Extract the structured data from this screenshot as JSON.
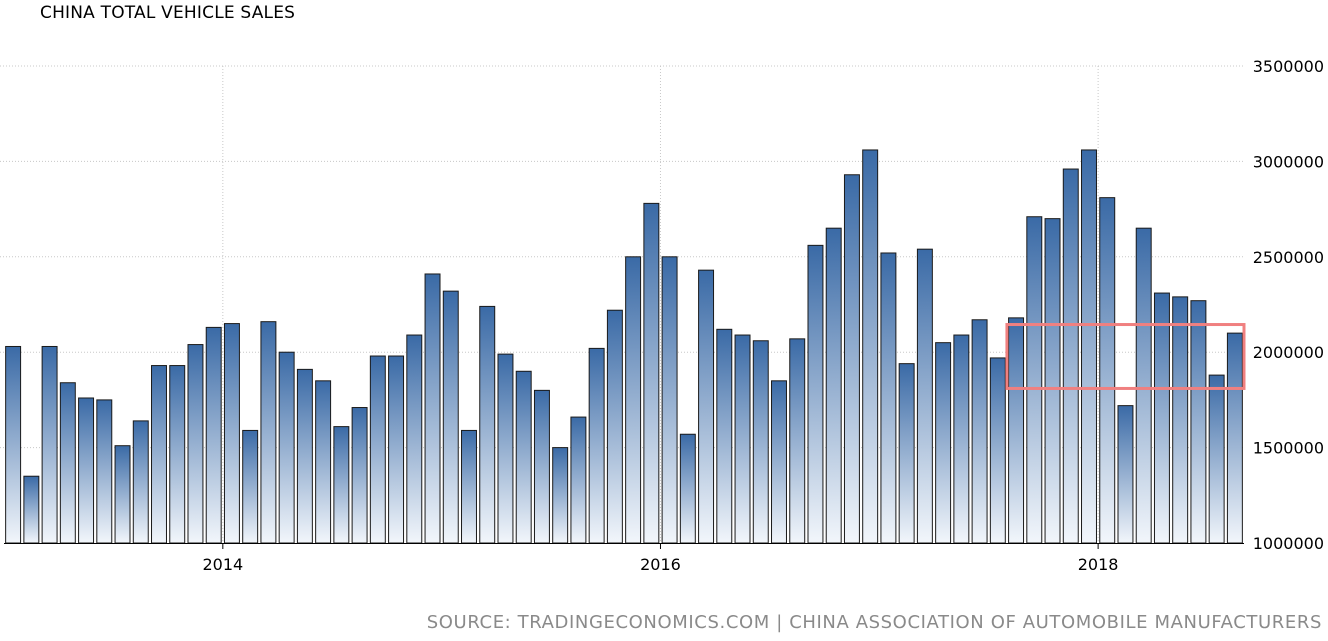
{
  "chart_data": {
    "type": "bar",
    "title": "CHINA TOTAL VEHICLE SALES",
    "source": "SOURCE: TRADINGECONOMICS.COM | CHINA ASSOCIATION OF AUTOMOBILE MANUFACTURERS",
    "xlabel": "",
    "ylabel": "",
    "ylim": [
      1000000,
      3500000
    ],
    "y_ticks": [
      1000000,
      1500000,
      2000000,
      2500000,
      3000000,
      3500000
    ],
    "y_tick_labels": [
      "1000000",
      "1500000",
      "2000000",
      "2500000",
      "3000000",
      "3500000"
    ],
    "y_axis_position": "right",
    "x_tick_labels": [
      {
        "label": "2014",
        "index": 12
      },
      {
        "label": "2016",
        "index": 36
      },
      {
        "label": "2018",
        "index": 60
      }
    ],
    "grid": true,
    "bar_color_top": "#3a6aa6",
    "bar_color_bottom": "#f2f6fb",
    "highlight": {
      "x_start_index": 55,
      "x_end_index": 68,
      "y_min": 1810000,
      "y_max": 2145000,
      "color": "#f08080"
    },
    "values": [
      2030000,
      1350000,
      2030000,
      1840000,
      1760000,
      1750000,
      1510000,
      1640000,
      1930000,
      1930000,
      2040000,
      2130000,
      2150000,
      1590000,
      2160000,
      2000000,
      1910000,
      1850000,
      1610000,
      1710000,
      1980000,
      1980000,
      2090000,
      2410000,
      2320000,
      1590000,
      2240000,
      1990000,
      1900000,
      1800000,
      1500000,
      1660000,
      2020000,
      2220000,
      2500000,
      2780000,
      2500000,
      1570000,
      2430000,
      2120000,
      2090000,
      2060000,
      1850000,
      2070000,
      2560000,
      2650000,
      2930000,
      3060000,
      2520000,
      1940000,
      2540000,
      2050000,
      2090000,
      2170000,
      1970000,
      2180000,
      2710000,
      2700000,
      2960000,
      3060000,
      2810000,
      1720000,
      2650000,
      2310000,
      2290000,
      2270000,
      1880000,
      2100000
    ]
  }
}
